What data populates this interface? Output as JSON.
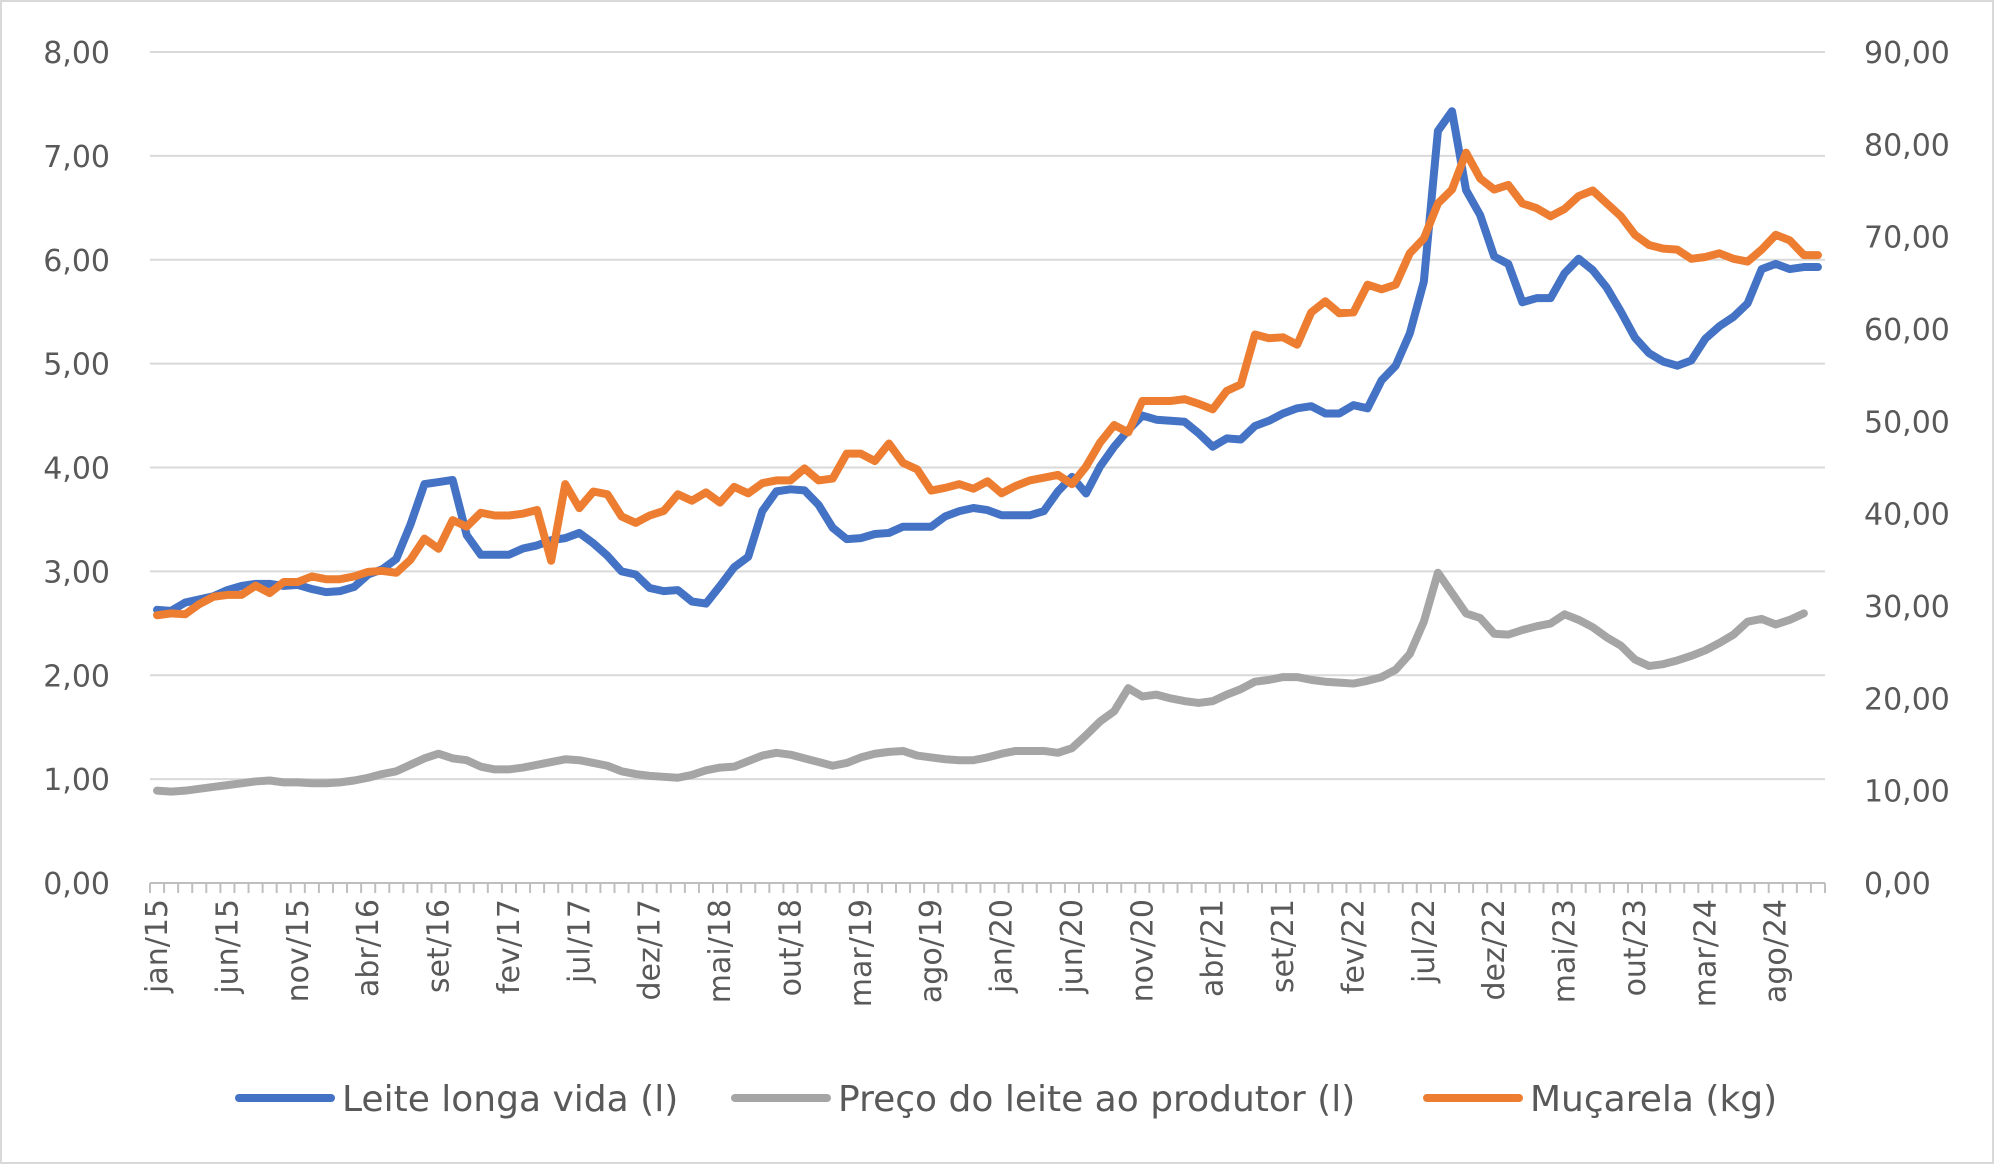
{
  "chart_data": {
    "type": "line",
    "title": "",
    "xlabel": "",
    "ylabel": "",
    "x_tick_labels": [
      "jan/15",
      "jun/15",
      "nov/15",
      "abr/16",
      "set/16",
      "fev/17",
      "jul/17",
      "dez/17",
      "mai/18",
      "out/18",
      "mar/19",
      "ago/19",
      "jan/20",
      "jun/20",
      "nov/20",
      "abr/21",
      "set/21",
      "fev/22",
      "jul/22",
      "dez/22",
      "mai/23",
      "out/23",
      "mar/24",
      "ago/24"
    ],
    "x_range": [
      "jan/15",
      "nov/24"
    ],
    "y_left": {
      "ylim": [
        0,
        8
      ],
      "tick_labels": [
        "0,00",
        "1,00",
        "2,00",
        "3,00",
        "4,00",
        "5,00",
        "6,00",
        "7,00",
        "8,00"
      ]
    },
    "y_right": {
      "ylim": [
        0,
        90
      ],
      "tick_labels": [
        "0,00",
        "10,00",
        "20,00",
        "30,00",
        "40,00",
        "50,00",
        "60,00",
        "70,00",
        "80,00",
        "90,00"
      ]
    },
    "grid": "horizontal",
    "legend_position": "bottom",
    "series": [
      {
        "name": "Leite longa vida (l)",
        "axis": "left",
        "color": "#4472C4",
        "values": [
          2.63,
          2.62,
          2.7,
          2.73,
          2.76,
          2.82,
          2.86,
          2.88,
          2.88,
          2.86,
          2.87,
          2.83,
          2.8,
          2.81,
          2.85,
          2.97,
          3.02,
          3.12,
          3.45,
          3.84,
          3.86,
          3.88,
          3.35,
          3.16,
          3.16,
          3.16,
          3.22,
          3.25,
          3.3,
          3.32,
          3.37,
          3.27,
          3.15,
          3.0,
          2.97,
          2.84,
          2.81,
          2.82,
          2.71,
          2.69,
          2.86,
          3.04,
          3.14,
          3.58,
          3.77,
          3.79,
          3.78,
          3.64,
          3.42,
          3.31,
          3.32,
          3.36,
          3.37,
          3.43,
          3.43,
          3.43,
          3.53,
          3.58,
          3.61,
          3.59,
          3.54,
          3.54,
          3.54,
          3.58,
          3.77,
          3.91,
          3.75,
          4.01,
          4.2,
          4.36,
          4.5,
          4.46,
          4.45,
          4.44,
          4.33,
          4.2,
          4.28,
          4.27,
          4.4,
          4.45,
          4.52,
          4.57,
          4.59,
          4.52,
          4.52,
          4.6,
          4.57,
          4.84,
          4.98,
          5.29,
          5.79,
          7.24,
          7.43,
          6.67,
          6.43,
          6.03,
          5.96,
          5.59,
          5.63,
          5.63,
          5.87,
          6.01,
          5.9,
          5.73,
          5.5,
          5.25,
          5.1,
          5.02,
          4.98,
          5.03,
          5.24,
          5.36,
          5.45,
          5.58,
          5.91,
          5.96,
          5.91,
          5.93,
          5.93
        ]
      },
      {
        "name": "Preço do leite ao produtor (l)",
        "axis": "right",
        "color": "#A5A5A5",
        "values": [
          10.0,
          9.9,
          10.0,
          10.2,
          10.4,
          10.6,
          10.8,
          11.0,
          11.1,
          10.9,
          10.9,
          10.8,
          10.8,
          10.9,
          11.1,
          11.4,
          11.8,
          12.1,
          12.8,
          13.5,
          14.0,
          13.5,
          13.3,
          12.6,
          12.3,
          12.3,
          12.5,
          12.8,
          13.1,
          13.4,
          13.3,
          13.0,
          12.7,
          12.1,
          11.8,
          11.6,
          11.5,
          11.4,
          11.7,
          12.2,
          12.5,
          12.6,
          13.2,
          13.8,
          14.1,
          13.9,
          13.5,
          13.1,
          12.7,
          13.0,
          13.6,
          14.0,
          14.2,
          14.3,
          13.8,
          13.6,
          13.4,
          13.3,
          13.3,
          13.6,
          14.0,
          14.3,
          14.3,
          14.3,
          14.1,
          14.6,
          16.0,
          17.5,
          18.6,
          21.1,
          20.2,
          20.4,
          20.0,
          19.7,
          19.5,
          19.7,
          20.4,
          21.0,
          21.8,
          22.0,
          22.3,
          22.3,
          22.0,
          21.8,
          21.7,
          21.6,
          21.9,
          22.3,
          23.1,
          24.8,
          28.3,
          33.6,
          31.4,
          29.2,
          28.7,
          27.0,
          26.9,
          27.4,
          27.8,
          28.1,
          29.1,
          28.5,
          27.7,
          26.6,
          25.7,
          24.2,
          23.5,
          23.7,
          24.1,
          24.6,
          25.2,
          26.0,
          26.9,
          28.3,
          28.6,
          28.0,
          28.5,
          29.2
        ]
      },
      {
        "name": "Muçarela (kg)",
        "axis": "right",
        "color": "#ED7D31",
        "values": [
          29.0,
          29.2,
          29.1,
          30.2,
          31.0,
          31.2,
          31.2,
          32.2,
          31.4,
          32.6,
          32.6,
          33.2,
          32.9,
          32.9,
          33.2,
          33.7,
          33.8,
          33.6,
          35.0,
          37.3,
          36.2,
          39.3,
          38.6,
          40.1,
          39.8,
          39.8,
          40.0,
          40.4,
          34.9,
          43.2,
          40.6,
          42.4,
          42.1,
          39.7,
          39.0,
          39.8,
          40.3,
          42.1,
          41.4,
          42.3,
          41.2,
          42.9,
          42.2,
          43.3,
          43.6,
          43.6,
          44.9,
          43.6,
          43.8,
          46.5,
          46.5,
          45.7,
          47.6,
          45.5,
          44.8,
          42.5,
          42.8,
          43.2,
          42.7,
          43.5,
          42.2,
          43.0,
          43.6,
          43.9,
          44.2,
          43.2,
          45.1,
          47.7,
          49.6,
          48.8,
          52.2,
          52.2,
          52.2,
          52.4,
          51.9,
          51.3,
          53.3,
          54.0,
          59.4,
          59.0,
          59.1,
          58.3,
          61.8,
          63.0,
          61.7,
          61.8,
          64.8,
          64.3,
          64.8,
          68.2,
          69.8,
          73.6,
          75.1,
          79.1,
          76.3,
          75.1,
          75.6,
          73.6,
          73.1,
          72.2,
          73.0,
          74.4,
          75.0,
          73.6,
          72.2,
          70.2,
          69.1,
          68.7,
          68.6,
          67.6,
          67.8,
          68.2,
          67.6,
          67.3,
          68.6,
          70.2,
          69.6,
          68.0,
          68.0
        ]
      }
    ]
  }
}
